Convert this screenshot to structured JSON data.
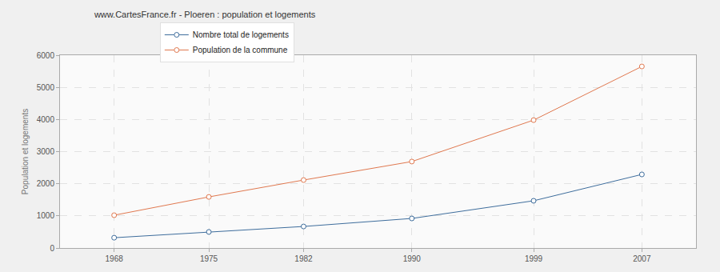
{
  "chart_data": {
    "type": "line",
    "title": "www.CartesFrance.fr - Ploeren : population et logements",
    "y_label": "Population et logements",
    "x": [
      1968,
      1975,
      1982,
      1990,
      1999,
      2007
    ],
    "series": [
      {
        "name": "Nombre total de logements",
        "color": "#3e6d9c",
        "values": [
          320,
          500,
          670,
          920,
          1470,
          2290
        ]
      },
      {
        "name": "Population de la commune",
        "color": "#e0784f",
        "values": [
          1020,
          1590,
          2115,
          2690,
          3980,
          5650
        ]
      }
    ],
    "xlim": [
      1964,
      2011
    ],
    "xticks": [
      1968,
      1975,
      1982,
      1990,
      1999,
      2007
    ],
    "ylim": [
      0,
      6000
    ],
    "yticks": [
      0,
      1000,
      2000,
      3000,
      4000,
      5000,
      6000
    ],
    "grid": true,
    "legend": "top",
    "marker": "circle"
  }
}
